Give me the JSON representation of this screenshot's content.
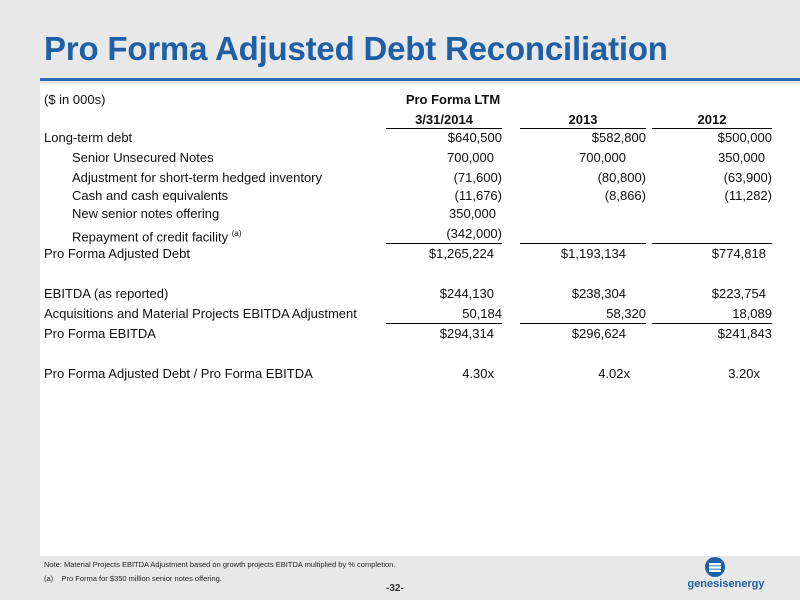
{
  "title": "Pro Forma Adjusted Debt Reconciliation",
  "units": "($ in 000s)",
  "headers": {
    "group": "Pro Forma LTM",
    "col1": "3/31/2014",
    "col2": "2013",
    "col3": "2012"
  },
  "rows": [
    {
      "label": "Long-term debt",
      "v1": "$640,500",
      "v2": "$582,800",
      "v3": "$500,000"
    },
    {
      "label": "Senior Unsecured Notes",
      "v1": "700,000",
      "v2": "700,000",
      "v3": "350,000"
    },
    {
      "label": "Adjustment for short-term hedged inventory",
      "v1": "(71,600)",
      "v2": "(80,800)",
      "v3": "(63,900)"
    },
    {
      "label": "Cash and cash equivalents",
      "v1": "(11,676)",
      "v2": "(8,866)",
      "v3": "(11,282)"
    },
    {
      "label": "New senior notes offering",
      "v1": "350,000",
      "v2": "",
      "v3": ""
    },
    {
      "label": "Repayment of credit facility",
      "sup": "(a)",
      "v1": "(342,000)",
      "v2": "",
      "v3": ""
    },
    {
      "label": "Pro Forma Adjusted Debt",
      "v1": "$1,265,224",
      "v2": "$1,193,134",
      "v3": "$774,818"
    },
    {
      "label": "EBITDA (as reported)",
      "v1": "$244,130",
      "v2": "$238,304",
      "v3": "$223,754"
    },
    {
      "label": "Acquisitions and Material Projects EBITDA Adjustment",
      "v1": "50,184",
      "v2": "58,320",
      "v3": "18,089"
    },
    {
      "label": "Pro Forma EBITDA",
      "v1": "$294,314",
      "v2": "$296,624",
      "v3": "$241,843"
    },
    {
      "label": "Pro Forma Adjusted Debt / Pro Forma EBITDA",
      "v1": "4.30x",
      "v2": "4.02x",
      "v3": "3.20x"
    }
  ],
  "notes": {
    "note1": "Note: Material Projects EBITDA Adjustment based on growth projects EBITDA multiplied by % completion.",
    "note2_marker": "(a)",
    "note2_text": "Pro Forma for $350 million senior notes offering."
  },
  "page_number": "-32-",
  "logo_text": "genesisenergy",
  "colors": {
    "brand_blue": "#1f5fa6",
    "background": "#e8e8e8"
  }
}
